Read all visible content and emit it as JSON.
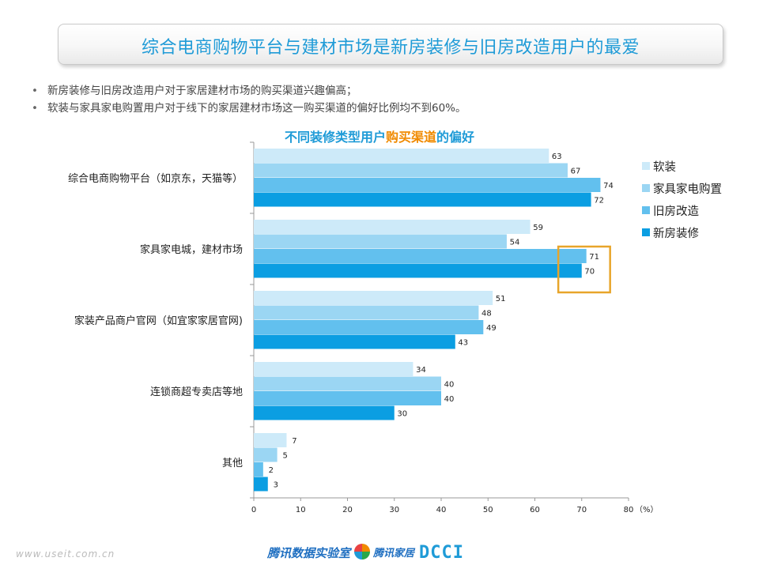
{
  "header": {
    "title": "综合电商购物平台与建材市场是新房装修与旧房改造用户的最爱"
  },
  "bullets": [
    "新房装修与旧房改造用户对于家居建材市场的购买渠道兴趣偏高；",
    "软装与家具家电购置用户对于线下的家居建材市场这一购买渠道的偏好比例均不到60%。"
  ],
  "chart_title": {
    "part1": "不同装修类型用户",
    "part2": "购买渠道",
    "part3": "的偏好"
  },
  "chart_data": {
    "type": "bar",
    "orientation": "horizontal",
    "categories": [
      "综合电商购物平台（如京东，天猫等）",
      "家具家电城，建材市场",
      "家装产品商户官网（如宜家家居官网)",
      "连锁商超专卖店等地",
      "其他"
    ],
    "series": [
      {
        "name": "软装",
        "color": "#cdeaf9",
        "values": [
          63,
          59,
          51,
          34,
          7
        ]
      },
      {
        "name": "家具家电购置",
        "color": "#9bd6f3",
        "values": [
          67,
          54,
          48,
          40,
          5
        ]
      },
      {
        "name": "旧房改造",
        "color": "#62c0ee",
        "values": [
          74,
          71,
          49,
          40,
          2
        ]
      },
      {
        "name": "新房装修",
        "color": "#0b9ee2",
        "values": [
          72,
          70,
          43,
          30,
          3
        ]
      }
    ],
    "xlim": [
      0,
      80
    ],
    "xticks": [
      0,
      10,
      20,
      30,
      40,
      50,
      60,
      70,
      80
    ],
    "xunit": "（%）",
    "legend_position": "right",
    "highlight": {
      "category_index": 1,
      "series": [
        "旧房改造",
        "新房装修"
      ],
      "color": "#e8a52a"
    }
  },
  "footer": {
    "url": "www.useit.com.cn",
    "logo1": "腾讯数据实验室",
    "logo2": "腾讯家居",
    "logo3": "DCCI"
  }
}
